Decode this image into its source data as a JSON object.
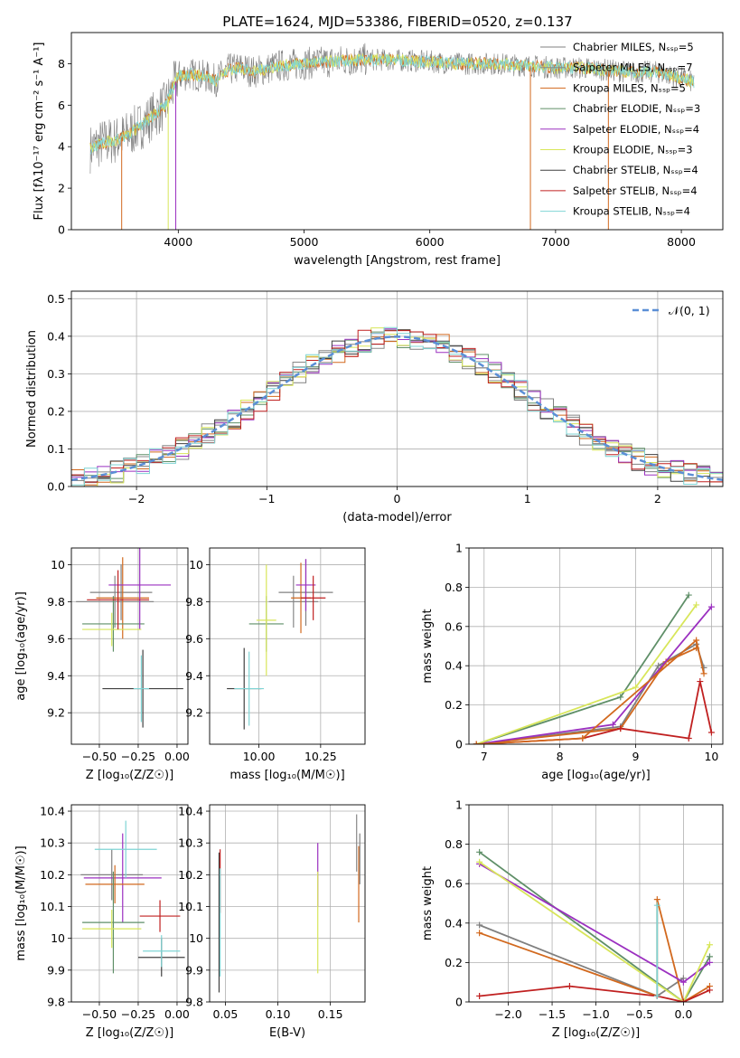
{
  "figure": {
    "title": "PLATE=1624, MJD=53386, FIBERID=0520, z=0.137"
  },
  "colors": {
    "grid": "#b0b0b0",
    "models": [
      "#808080",
      "#888888",
      "#d2691e",
      "#5f8f68",
      "#9b30c0",
      "#d8e65a",
      "#404040",
      "#c02020",
      "#7fd4d4"
    ]
  },
  "chart_data": [
    {
      "id": "spectrum",
      "type": "line",
      "title": "PLATE=1624, MJD=53386, FIBERID=0520, z=0.137",
      "xlabel": "wavelength [Angstrom, rest frame]",
      "ylabel": "Flux [fλ10⁻¹⁷ erg cm⁻² s⁻¹ A⁻¹]",
      "xlim": [
        3150,
        8330
      ],
      "ylim": [
        0,
        9.5
      ],
      "xticks": [
        4000,
        5000,
        6000,
        7000,
        8000
      ],
      "yticks": [
        0,
        2,
        4,
        6,
        8
      ],
      "grid": false,
      "legend_position": "top-right",
      "legend": [
        "Chabrier MILES, Nₛₛₚ=5",
        "Salpeter MILES, Nₛₛₚ=7",
        "Kroupa MILES, Nₛₛₚ=5",
        "Chabrier ELODIE, Nₛₛₚ=3",
        "Salpeter ELODIE, Nₛₛₚ=4",
        "Kroupa ELODIE, Nₛₛₚ=3",
        "Chabrier STELIB, Nₛₛₚ=4",
        "Salpeter STELIB, Nₛₛₚ=4",
        "Kroupa STELIB, Nₛₛₚ=4"
      ],
      "continuum": {
        "x": [
          3300,
          3400,
          3500,
          3600,
          3700,
          3800,
          3900,
          4000,
          4100,
          4200,
          4300,
          4400,
          4500,
          4600,
          4800,
          5000,
          5200,
          5500,
          5800,
          6000,
          6200,
          6500,
          6800,
          7000,
          7200,
          7400,
          7600,
          7800,
          8000,
          8100
        ],
        "y": [
          3.9,
          4.2,
          4.3,
          4.6,
          5.0,
          5.5,
          6.0,
          7.4,
          7.5,
          7.4,
          7.2,
          7.7,
          7.8,
          7.6,
          7.9,
          8.0,
          8.1,
          8.2,
          8.15,
          8.1,
          8.0,
          8.0,
          7.9,
          7.8,
          7.8,
          7.7,
          7.6,
          7.6,
          7.3,
          7.1
        ]
      }
    },
    {
      "id": "residuals",
      "type": "line",
      "xlabel": "(data-model)/error",
      "ylabel": "Normed distribution",
      "xlim": [
        -2.5,
        2.5
      ],
      "ylim": [
        0,
        0.52
      ],
      "xticks": [
        -2,
        -1,
        0,
        1,
        2
      ],
      "yticks": [
        0.0,
        0.1,
        0.2,
        0.3,
        0.4,
        0.5
      ],
      "grid": true,
      "legend_position": "top-right",
      "legend": [
        "𝒩(0, 1)"
      ],
      "gaussian": {
        "mu": 0,
        "sigma": 1
      }
    },
    {
      "id": "age-vs-z",
      "type": "scatter",
      "xlabel": "Z [log₁₀(Z/Z☉)]",
      "ylabel": "age  [log₁₀(age/yr)]",
      "xlim": [
        -0.68,
        0.07
      ],
      "ylim": [
        9.03,
        10.09
      ],
      "xticks": [
        -0.5,
        -0.25,
        0.0
      ],
      "xtick_labels": [
        "−0.50",
        "−0.25",
        "0.00"
      ],
      "yticks": [
        9.2,
        9.4,
        9.6,
        9.8,
        10.0
      ],
      "grid": true,
      "errorbars": [
        {
          "x": -0.36,
          "y": 9.85,
          "xerr": 0.2,
          "yerr": 0.15,
          "series": 0
        },
        {
          "x": -0.4,
          "y": 9.8,
          "xerr": 0.25,
          "yerr": 0.14,
          "series": 1
        },
        {
          "x": -0.35,
          "y": 9.82,
          "xerr": 0.17,
          "yerr": 0.22,
          "series": 2
        },
        {
          "x": -0.41,
          "y": 9.68,
          "xerr": 0.2,
          "yerr": 0.15,
          "series": 3
        },
        {
          "x": -0.24,
          "y": 9.89,
          "xerr": 0.2,
          "yerr": 0.24,
          "series": 4
        },
        {
          "x": -0.42,
          "y": 9.65,
          "xerr": 0.19,
          "yerr": 0.09,
          "series": 5
        },
        {
          "x": -0.22,
          "y": 9.33,
          "xerr": 0.26,
          "yerr": 0.21,
          "series": 6
        },
        {
          "x": -0.38,
          "y": 9.81,
          "xerr": 0.2,
          "yerr": 0.16,
          "series": 7
        },
        {
          "x": -0.23,
          "y": 9.33,
          "xerr": 0.05,
          "yerr": 0.18,
          "series": 8
        }
      ]
    },
    {
      "id": "age-vs-mass",
      "type": "scatter",
      "xlabel": "mass [log₁₀(M/M☉)]",
      "ylabel": "",
      "xlim": [
        9.8,
        10.43
      ],
      "ylim": [
        9.03,
        10.09
      ],
      "xticks": [
        10.0,
        10.25
      ],
      "xtick_labels": [
        "10.00",
        "10.25"
      ],
      "yticks": [
        9.2,
        9.4,
        9.6,
        9.8,
        10.0
      ],
      "grid": true,
      "errorbars": [
        {
          "x": 10.19,
          "y": 9.85,
          "xerr": 0.11,
          "yerr": 0.18,
          "series": 0
        },
        {
          "x": 10.14,
          "y": 9.8,
          "xerr": 0.1,
          "yerr": 0.14,
          "series": 1
        },
        {
          "x": 10.17,
          "y": 9.82,
          "xerr": 0.04,
          "yerr": 0.19,
          "series": 2
        },
        {
          "x": 10.03,
          "y": 9.68,
          "xerr": 0.07,
          "yerr": 0.15,
          "series": 3
        },
        {
          "x": 10.19,
          "y": 9.89,
          "xerr": 0.04,
          "yerr": 0.14,
          "series": 4
        },
        {
          "x": 10.03,
          "y": 9.7,
          "xerr": 0.04,
          "yerr": 0.3,
          "series": 5
        },
        {
          "x": 9.94,
          "y": 9.33,
          "xerr": 0.07,
          "yerr": 0.22,
          "series": 6
        },
        {
          "x": 10.22,
          "y": 9.82,
          "xerr": 0.05,
          "yerr": 0.12,
          "series": 7
        },
        {
          "x": 9.96,
          "y": 9.33,
          "xerr": 0.06,
          "yerr": 0.2,
          "series": 8
        }
      ]
    },
    {
      "id": "weight-vs-age",
      "type": "line",
      "xlabel": "age  [log₁₀(age/yr)]",
      "ylabel": "mass weight",
      "xlim": [
        6.8,
        10.15
      ],
      "ylim": [
        0,
        1.0
      ],
      "xticks": [
        7,
        8,
        9,
        10
      ],
      "yticks": [
        0.0,
        0.2,
        0.4,
        0.6,
        0.8,
        1.0
      ],
      "grid": true,
      "series": [
        {
          "x": [
            6.9,
            8.8,
            9.3,
            9.8,
            9.9
          ],
          "y": [
            0.0,
            0.09,
            0.4,
            0.51,
            0.39
          ],
          "color": 0
        },
        {
          "x": [
            6.9,
            8.8,
            9.4,
            9.8
          ],
          "y": [
            0.0,
            0.08,
            0.42,
            0.49
          ],
          "color": 2
        },
        {
          "x": [
            6.9,
            8.8,
            9.7
          ],
          "y": [
            0.0,
            0.24,
            0.76
          ],
          "color": 3
        },
        {
          "x": [
            6.9,
            8.7,
            10.0
          ],
          "y": [
            0.0,
            0.1,
            0.7
          ],
          "color": 4
        },
        {
          "x": [
            6.9,
            9.0,
            9.8
          ],
          "y": [
            0.0,
            0.29,
            0.71
          ],
          "color": 5
        },
        {
          "x": [
            6.9,
            8.3,
            8.8,
            9.7,
            9.85,
            10.0
          ],
          "y": [
            0.0,
            0.03,
            0.08,
            0.03,
            0.32,
            0.06
          ],
          "color": 7
        },
        {
          "x": [
            6.9,
            8.3,
            9.8,
            9.9
          ],
          "y": [
            0.0,
            0.03,
            0.53,
            0.36
          ],
          "color": 2
        }
      ]
    },
    {
      "id": "mass-vs-z",
      "type": "scatter",
      "xlabel": "Z [log₁₀(Z/Z☉)]",
      "ylabel": "mass [log₁₀(M/M☉)]",
      "xlim": [
        -0.68,
        0.07
      ],
      "ylim": [
        9.8,
        10.42
      ],
      "xticks": [
        -0.5,
        -0.25,
        0.0
      ],
      "xtick_labels": [
        "−0.50",
        "−0.25",
        "0.00"
      ],
      "yticks": [
        9.8,
        9.9,
        10.0,
        10.1,
        10.2,
        10.3,
        10.4
      ],
      "grid": true,
      "errorbars": [
        {
          "x": -0.42,
          "y": 10.2,
          "xerr": 0.2,
          "yerr": 0.08,
          "series": 0
        },
        {
          "x": -0.35,
          "y": 10.19,
          "xerr": 0.25,
          "yerr": 0.14,
          "series": 4
        },
        {
          "x": -0.4,
          "y": 10.17,
          "xerr": 0.19,
          "yerr": 0.06,
          "series": 2
        },
        {
          "x": -0.41,
          "y": 10.05,
          "xerr": 0.2,
          "yerr": 0.16,
          "series": 3
        },
        {
          "x": -0.33,
          "y": 10.28,
          "xerr": 0.2,
          "yerr": 0.09,
          "series": 8
        },
        {
          "x": -0.42,
          "y": 10.03,
          "xerr": 0.19,
          "yerr": 0.06,
          "series": 5
        },
        {
          "x": -0.1,
          "y": 9.94,
          "xerr": 0.15,
          "yerr": 0.06,
          "series": 6
        },
        {
          "x": -0.11,
          "y": 10.07,
          "xerr": 0.13,
          "yerr": 0.05,
          "series": 7
        },
        {
          "x": -0.1,
          "y": 9.96,
          "xerr": 0.12,
          "yerr": 0.05,
          "series": 8
        }
      ]
    },
    {
      "id": "mass-vs-ebv",
      "type": "scatter",
      "xlabel": "E(B-V)",
      "ylabel": "",
      "xlim": [
        0.035,
        0.183
      ],
      "ylim": [
        9.8,
        10.42
      ],
      "xticks": [
        0.05,
        0.1,
        0.15
      ],
      "xtick_labels": [
        "0.05",
        "0.10",
        "0.15"
      ],
      "yticks": [
        9.8,
        9.9,
        10.0,
        10.1,
        10.2,
        10.3,
        10.4
      ],
      "grid": true,
      "errorbars": [
        {
          "x": 0.044,
          "y": 10.05,
          "xerr": 0.0,
          "yerr": 0.22,
          "series": 6
        },
        {
          "x": 0.045,
          "y": 10.18,
          "xerr": 0.0,
          "yerr": 0.1,
          "series": 7
        },
        {
          "x": 0.045,
          "y": 10.05,
          "xerr": 0.0,
          "yerr": 0.17,
          "series": 8
        },
        {
          "x": 0.138,
          "y": 10.2,
          "xerr": 0.0,
          "yerr": 0.1,
          "series": 4
        },
        {
          "x": 0.138,
          "y": 10.05,
          "xerr": 0.0,
          "yerr": 0.16,
          "series": 5
        },
        {
          "x": 0.175,
          "y": 10.3,
          "xerr": 0.0,
          "yerr": 0.09,
          "series": 1
        },
        {
          "x": 0.177,
          "y": 10.17,
          "xerr": 0.0,
          "yerr": 0.12,
          "series": 2
        },
        {
          "x": 0.178,
          "y": 10.25,
          "xerr": 0.0,
          "yerr": 0.08,
          "series": 0
        }
      ]
    },
    {
      "id": "weight-vs-z",
      "type": "line",
      "xlabel": "Z [log₁₀(Z/Z☉)]",
      "ylabel": "mass weight",
      "xlim": [
        -2.45,
        0.45
      ],
      "ylim": [
        0,
        1.0
      ],
      "xticks": [
        -2.0,
        -1.5,
        -1.0,
        -0.5,
        0.0
      ],
      "xtick_labels": [
        "−2.0",
        "−1.5",
        "−1.0",
        "−0.5",
        "0.0"
      ],
      "yticks": [
        0.0,
        0.2,
        0.4,
        0.6,
        0.8,
        1.0
      ],
      "grid": true,
      "series": [
        {
          "x": [
            -2.33,
            -0.3,
            0.0
          ],
          "y": [
            0.39,
            0.03,
            0.12
          ],
          "color": 0
        },
        {
          "x": [
            -2.33,
            -0.3,
            -0.3,
            0.0,
            0.3
          ],
          "y": [
            0.35,
            0.03,
            0.52,
            0.0,
            0.08
          ],
          "color": 2
        },
        {
          "x": [
            -2.33,
            0.0,
            0.3
          ],
          "y": [
            0.76,
            0.0,
            0.23
          ],
          "color": 3
        },
        {
          "x": [
            -2.33,
            0.0,
            0.3
          ],
          "y": [
            0.7,
            0.1,
            0.2
          ],
          "color": 4
        },
        {
          "x": [
            -2.33,
            0.0,
            0.3
          ],
          "y": [
            0.71,
            0.0,
            0.29
          ],
          "color": 5
        },
        {
          "x": [
            -2.33,
            -1.3,
            -0.3,
            0.0,
            0.3
          ],
          "y": [
            0.03,
            0.08,
            0.03,
            0.0,
            0.06
          ],
          "color": 7
        },
        {
          "x": [
            -0.3,
            -0.3
          ],
          "y": [
            0.03,
            0.49
          ],
          "color": 8
        }
      ]
    }
  ]
}
